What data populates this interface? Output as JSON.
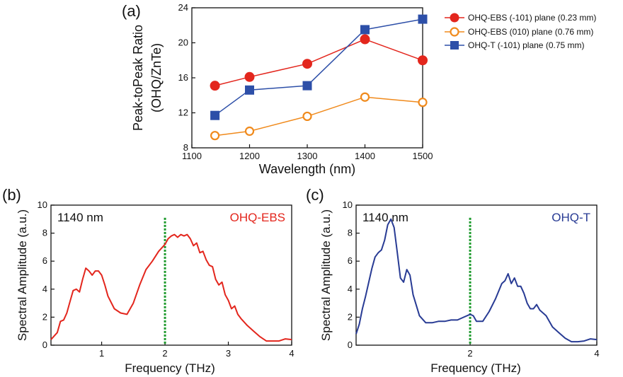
{
  "colors": {
    "red": "#e3261d",
    "orange": "#f08a1c",
    "blue": "#2d4fa8",
    "darkblue": "#283b94",
    "green": "#1d9a2c",
    "axis": "#111111"
  },
  "chart_data": [
    {
      "id": "a",
      "type": "line",
      "panel_label": "(a)",
      "title": "",
      "xlabel": "Wavelength (nm)",
      "ylabel_line1": "Peak-toPeak Ratio",
      "ylabel_line2": "(OHQ/ZnTe)",
      "xlim": [
        1100,
        1500
      ],
      "ylim": [
        8,
        24
      ],
      "xticks": [
        1100,
        1200,
        1300,
        1400,
        1500
      ],
      "yticks": [
        8,
        12,
        16,
        20,
        24
      ],
      "legend_position": "outside-right",
      "series": [
        {
          "name": "OHQ-EBS (-101) plane (0.23 mm)",
          "marker": "filled-circle",
          "color_key": "red",
          "x": [
            1140,
            1200,
            1300,
            1400,
            1500
          ],
          "y": [
            15.1,
            16.1,
            17.6,
            20.4,
            18.0
          ]
        },
        {
          "name": "OHQ-EBS (010) plane (0.76 mm)",
          "marker": "open-circle",
          "color_key": "orange",
          "x": [
            1140,
            1200,
            1300,
            1400,
            1500
          ],
          "y": [
            9.4,
            9.9,
            11.6,
            13.8,
            13.2
          ]
        },
        {
          "name": "OHQ-T (-101) plane (0.75 mm)",
          "marker": "filled-square",
          "color_key": "blue",
          "x": [
            1140,
            1200,
            1300,
            1400,
            1500
          ],
          "y": [
            11.7,
            14.6,
            15.1,
            21.5,
            22.7
          ]
        }
      ]
    },
    {
      "id": "b",
      "type": "line",
      "panel_label": "(b)",
      "title": "",
      "xlabel": "Frequency (THz)",
      "ylabel": "Spectral Amplitude (a.u.)",
      "xlim": [
        0.2,
        4.0
      ],
      "ylim": [
        0,
        10
      ],
      "xticks": [
        1,
        2,
        3,
        4
      ],
      "yticks": [
        0,
        2,
        4,
        6,
        8,
        10
      ],
      "annotation_left": "1140 nm",
      "annotation_right": "OHQ-EBS",
      "marker_line_x": 2.0,
      "series": [
        {
          "name": "OHQ-EBS",
          "color_key": "red",
          "x": [
            0.2,
            0.3,
            0.35,
            0.4,
            0.45,
            0.5,
            0.55,
            0.6,
            0.65,
            0.7,
            0.75,
            0.8,
            0.85,
            0.9,
            0.95,
            1.0,
            1.05,
            1.1,
            1.2,
            1.3,
            1.4,
            1.5,
            1.6,
            1.7,
            1.8,
            1.9,
            2.0,
            2.05,
            2.1,
            2.15,
            2.2,
            2.25,
            2.3,
            2.35,
            2.4,
            2.45,
            2.5,
            2.55,
            2.6,
            2.65,
            2.7,
            2.75,
            2.8,
            2.85,
            2.9,
            2.95,
            3.0,
            3.05,
            3.1,
            3.15,
            3.2,
            3.3,
            3.4,
            3.5,
            3.6,
            3.7,
            3.8,
            3.9,
            4.0
          ],
          "y": [
            0.4,
            0.9,
            1.7,
            1.8,
            2.3,
            3.1,
            3.9,
            4.0,
            3.8,
            4.7,
            5.5,
            5.3,
            5.0,
            5.3,
            5.3,
            5.0,
            4.3,
            3.5,
            2.6,
            2.3,
            2.2,
            3.0,
            4.3,
            5.4,
            6.0,
            6.7,
            7.2,
            7.6,
            7.8,
            7.9,
            7.7,
            7.9,
            7.8,
            7.9,
            7.6,
            7.1,
            7.3,
            6.6,
            6.7,
            6.1,
            5.7,
            5.6,
            4.7,
            4.3,
            4.5,
            3.6,
            3.2,
            2.6,
            2.8,
            2.2,
            1.9,
            1.4,
            1.0,
            0.6,
            0.3,
            0.3,
            0.3,
            0.45,
            0.4
          ]
        }
      ]
    },
    {
      "id": "c",
      "type": "line",
      "panel_label": "(c)",
      "title": "",
      "xlabel": "Frequency (THz)",
      "ylabel": "Spectral Amplitude (a.u.)",
      "xlim": [
        0.2,
        4.0
      ],
      "ylim": [
        0,
        10
      ],
      "xticks": [
        2,
        4
      ],
      "yticks": [
        0,
        2,
        4,
        6,
        8,
        10
      ],
      "annotation_left": "1140 nm",
      "annotation_right": "OHQ-T",
      "marker_line_x": 2.0,
      "series": [
        {
          "name": "OHQ-T",
          "color_key": "darkblue",
          "x": [
            0.2,
            0.25,
            0.3,
            0.35,
            0.4,
            0.45,
            0.5,
            0.55,
            0.6,
            0.65,
            0.7,
            0.75,
            0.8,
            0.85,
            0.9,
            0.95,
            1.0,
            1.05,
            1.1,
            1.2,
            1.3,
            1.4,
            1.5,
            1.6,
            1.7,
            1.8,
            1.9,
            2.0,
            2.05,
            2.1,
            2.2,
            2.3,
            2.4,
            2.5,
            2.55,
            2.6,
            2.65,
            2.7,
            2.75,
            2.8,
            2.85,
            2.9,
            2.95,
            3.0,
            3.05,
            3.1,
            3.2,
            3.3,
            3.4,
            3.5,
            3.6,
            3.7,
            3.8,
            3.9,
            4.0
          ],
          "y": [
            0.8,
            1.5,
            2.6,
            3.5,
            4.5,
            5.5,
            6.3,
            6.6,
            6.8,
            7.5,
            8.6,
            9.0,
            8.4,
            6.6,
            4.8,
            4.5,
            5.4,
            5.0,
            3.6,
            2.1,
            1.6,
            1.6,
            1.7,
            1.7,
            1.8,
            1.8,
            2.0,
            2.2,
            2.1,
            1.7,
            1.7,
            2.4,
            3.3,
            4.4,
            4.6,
            5.1,
            4.4,
            4.8,
            4.2,
            4.2,
            3.7,
            3.0,
            2.6,
            2.6,
            2.9,
            2.5,
            2.1,
            1.3,
            0.9,
            0.5,
            0.25,
            0.25,
            0.3,
            0.45,
            0.4
          ]
        }
      ]
    }
  ]
}
